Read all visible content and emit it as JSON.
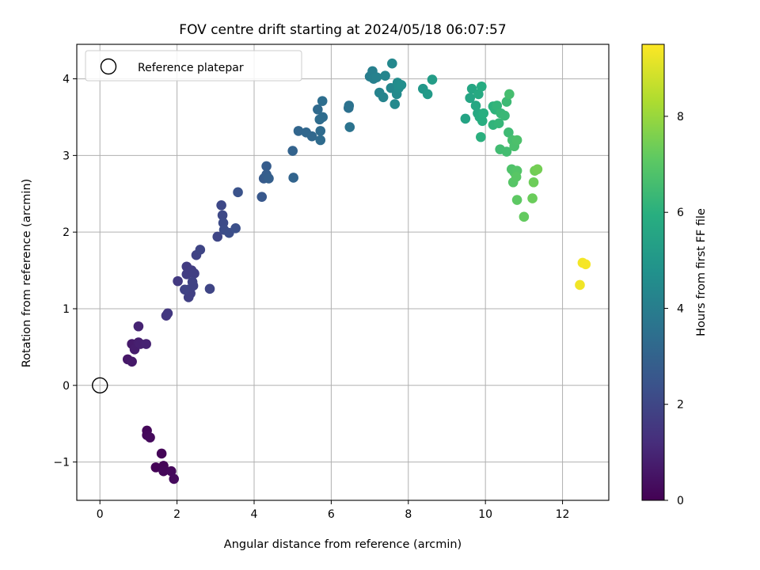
{
  "chart_data": {
    "type": "scatter",
    "title": "FOV centre drift starting at 2024/05/18 06:07:57",
    "xlabel": "Angular distance from reference (arcmin)",
    "ylabel": "Rotation from reference (arcmin)",
    "xlim": [
      -0.6,
      13.2
    ],
    "ylim": [
      -1.5,
      4.45
    ],
    "xticks": [
      0,
      2,
      4,
      6,
      8,
      10,
      12
    ],
    "yticks": [
      -1,
      0,
      1,
      2,
      3,
      4
    ],
    "xtick_labels": [
      "0",
      "2",
      "4",
      "6",
      "8",
      "10",
      "12"
    ],
    "ytick_labels": [
      "−1",
      "0",
      "1",
      "2",
      "3",
      "4"
    ],
    "grid": true,
    "legend": {
      "position": "upper-left",
      "entries": [
        "Reference platepar"
      ]
    },
    "reference_point": {
      "x": 0,
      "y": 0,
      "label": "Reference platepar"
    },
    "colorbar": {
      "label": "Hours from first FF file",
      "colormap": "viridis",
      "range": [
        0,
        9.5
      ],
      "ticks": [
        0,
        2,
        4,
        6,
        8
      ],
      "tick_labels": [
        "0",
        "2",
        "4",
        "6",
        "8"
      ]
    },
    "points": [
      {
        "x": 1.22,
        "y": -0.59,
        "t": 0.15
      },
      {
        "x": 1.22,
        "y": -0.65,
        "t": 0.2
      },
      {
        "x": 1.3,
        "y": -0.68,
        "t": 0.25
      },
      {
        "x": 1.6,
        "y": -0.89,
        "t": 0.1
      },
      {
        "x": 1.45,
        "y": -1.07,
        "t": 0.05
      },
      {
        "x": 1.65,
        "y": -1.05,
        "t": 0.1
      },
      {
        "x": 1.65,
        "y": -1.12,
        "t": 0.15
      },
      {
        "x": 1.85,
        "y": -1.12,
        "t": 0.2
      },
      {
        "x": 1.92,
        "y": -1.22,
        "t": 0.25
      },
      {
        "x": 0.72,
        "y": 0.34,
        "t": 0.6
      },
      {
        "x": 0.83,
        "y": 0.31,
        "t": 0.65
      },
      {
        "x": 0.83,
        "y": 0.54,
        "t": 0.7
      },
      {
        "x": 0.9,
        "y": 0.47,
        "t": 0.75
      },
      {
        "x": 1.0,
        "y": 0.56,
        "t": 0.8
      },
      {
        "x": 1.05,
        "y": 0.54,
        "t": 0.85
      },
      {
        "x": 1.2,
        "y": 0.54,
        "t": 0.9
      },
      {
        "x": 1.0,
        "y": 0.77,
        "t": 0.95
      },
      {
        "x": 1.72,
        "y": 0.91,
        "t": 1.5
      },
      {
        "x": 1.76,
        "y": 0.94,
        "t": 1.55
      },
      {
        "x": 2.02,
        "y": 1.36,
        "t": 1.6
      },
      {
        "x": 2.25,
        "y": 1.55,
        "t": 1.65
      },
      {
        "x": 2.25,
        "y": 1.45,
        "t": 1.7
      },
      {
        "x": 2.38,
        "y": 1.5,
        "t": 1.7
      },
      {
        "x": 2.45,
        "y": 1.46,
        "t": 1.75
      },
      {
        "x": 2.3,
        "y": 1.25,
        "t": 1.75
      },
      {
        "x": 2.35,
        "y": 1.2,
        "t": 1.8
      },
      {
        "x": 2.3,
        "y": 1.15,
        "t": 1.8
      },
      {
        "x": 2.42,
        "y": 1.3,
        "t": 1.85
      },
      {
        "x": 2.4,
        "y": 1.35,
        "t": 1.85
      },
      {
        "x": 2.2,
        "y": 1.25,
        "t": 1.9
      },
      {
        "x": 2.5,
        "y": 1.7,
        "t": 1.9
      },
      {
        "x": 2.6,
        "y": 1.77,
        "t": 1.95
      },
      {
        "x": 2.85,
        "y": 1.26,
        "t": 1.95
      },
      {
        "x": 3.05,
        "y": 1.94,
        "t": 2.0
      },
      {
        "x": 3.15,
        "y": 2.35,
        "t": 2.05
      },
      {
        "x": 3.18,
        "y": 2.22,
        "t": 2.1
      },
      {
        "x": 3.2,
        "y": 2.12,
        "t": 2.15
      },
      {
        "x": 3.22,
        "y": 2.03,
        "t": 2.2
      },
      {
        "x": 3.35,
        "y": 1.99,
        "t": 2.25
      },
      {
        "x": 3.52,
        "y": 2.05,
        "t": 2.3
      },
      {
        "x": 3.58,
        "y": 2.52,
        "t": 2.4
      },
      {
        "x": 4.2,
        "y": 2.46,
        "t": 2.6
      },
      {
        "x": 4.25,
        "y": 2.7,
        "t": 2.7
      },
      {
        "x": 4.32,
        "y": 2.86,
        "t": 2.75
      },
      {
        "x": 4.32,
        "y": 2.75,
        "t": 2.8
      },
      {
        "x": 4.38,
        "y": 2.7,
        "t": 2.85
      },
      {
        "x": 5.0,
        "y": 3.06,
        "t": 3.0
      },
      {
        "x": 5.02,
        "y": 2.71,
        "t": 3.05
      },
      {
        "x": 5.15,
        "y": 3.32,
        "t": 3.1
      },
      {
        "x": 5.35,
        "y": 3.3,
        "t": 3.15
      },
      {
        "x": 5.5,
        "y": 3.25,
        "t": 3.2
      },
      {
        "x": 5.65,
        "y": 3.6,
        "t": 3.25
      },
      {
        "x": 5.72,
        "y": 3.2,
        "t": 3.3
      },
      {
        "x": 5.72,
        "y": 3.32,
        "t": 3.3
      },
      {
        "x": 5.7,
        "y": 3.47,
        "t": 3.35
      },
      {
        "x": 5.78,
        "y": 3.5,
        "t": 3.35
      },
      {
        "x": 5.77,
        "y": 3.71,
        "t": 3.4
      },
      {
        "x": 6.45,
        "y": 3.62,
        "t": 3.5
      },
      {
        "x": 6.46,
        "y": 3.65,
        "t": 3.55
      },
      {
        "x": 6.48,
        "y": 3.37,
        "t": 3.6
      },
      {
        "x": 7.0,
        "y": 4.03,
        "t": 4.0
      },
      {
        "x": 7.07,
        "y": 4.1,
        "t": 4.05
      },
      {
        "x": 7.1,
        "y": 4.0,
        "t": 4.1
      },
      {
        "x": 7.18,
        "y": 4.02,
        "t": 4.15
      },
      {
        "x": 7.25,
        "y": 3.82,
        "t": 4.2
      },
      {
        "x": 7.35,
        "y": 3.76,
        "t": 4.25
      },
      {
        "x": 7.4,
        "y": 4.04,
        "t": 4.3
      },
      {
        "x": 7.55,
        "y": 3.88,
        "t": 4.35
      },
      {
        "x": 7.58,
        "y": 4.2,
        "t": 4.4
      },
      {
        "x": 7.65,
        "y": 3.67,
        "t": 4.45
      },
      {
        "x": 7.7,
        "y": 3.8,
        "t": 4.5
      },
      {
        "x": 7.72,
        "y": 3.95,
        "t": 4.55
      },
      {
        "x": 7.75,
        "y": 3.88,
        "t": 4.6
      },
      {
        "x": 7.82,
        "y": 3.92,
        "t": 4.65
      },
      {
        "x": 8.38,
        "y": 3.87,
        "t": 5.0
      },
      {
        "x": 8.5,
        "y": 3.8,
        "t": 5.1
      },
      {
        "x": 8.62,
        "y": 3.99,
        "t": 5.2
      },
      {
        "x": 9.48,
        "y": 3.48,
        "t": 5.5
      },
      {
        "x": 9.6,
        "y": 3.75,
        "t": 5.55
      },
      {
        "x": 9.65,
        "y": 3.87,
        "t": 5.6
      },
      {
        "x": 9.75,
        "y": 3.65,
        "t": 5.65
      },
      {
        "x": 9.8,
        "y": 3.55,
        "t": 5.7
      },
      {
        "x": 9.82,
        "y": 3.8,
        "t": 5.75
      },
      {
        "x": 9.85,
        "y": 3.5,
        "t": 5.8
      },
      {
        "x": 9.9,
        "y": 3.9,
        "t": 5.85
      },
      {
        "x": 9.92,
        "y": 3.45,
        "t": 5.9
      },
      {
        "x": 9.95,
        "y": 3.55,
        "t": 5.95
      },
      {
        "x": 9.88,
        "y": 3.24,
        "t": 6.0
      },
      {
        "x": 10.2,
        "y": 3.64,
        "t": 6.05
      },
      {
        "x": 10.25,
        "y": 3.6,
        "t": 6.1
      },
      {
        "x": 10.2,
        "y": 3.4,
        "t": 6.15
      },
      {
        "x": 10.3,
        "y": 3.65,
        "t": 6.2
      },
      {
        "x": 10.35,
        "y": 3.42,
        "t": 6.25
      },
      {
        "x": 10.4,
        "y": 3.55,
        "t": 6.3
      },
      {
        "x": 10.5,
        "y": 3.52,
        "t": 6.35
      },
      {
        "x": 10.55,
        "y": 3.7,
        "t": 6.4
      },
      {
        "x": 10.6,
        "y": 3.3,
        "t": 6.45
      },
      {
        "x": 10.38,
        "y": 3.08,
        "t": 6.5
      },
      {
        "x": 10.55,
        "y": 3.05,
        "t": 6.55
      },
      {
        "x": 10.62,
        "y": 3.8,
        "t": 6.6
      },
      {
        "x": 10.7,
        "y": 3.2,
        "t": 6.65
      },
      {
        "x": 10.75,
        "y": 3.12,
        "t": 6.7
      },
      {
        "x": 10.82,
        "y": 3.2,
        "t": 6.75
      },
      {
        "x": 10.68,
        "y": 2.82,
        "t": 6.8
      },
      {
        "x": 10.75,
        "y": 2.78,
        "t": 6.85
      },
      {
        "x": 10.82,
        "y": 2.8,
        "t": 6.9
      },
      {
        "x": 10.72,
        "y": 2.65,
        "t": 6.95
      },
      {
        "x": 10.8,
        "y": 2.72,
        "t": 7.0
      },
      {
        "x": 10.82,
        "y": 2.42,
        "t": 7.1
      },
      {
        "x": 11.0,
        "y": 2.2,
        "t": 7.2
      },
      {
        "x": 11.22,
        "y": 2.44,
        "t": 7.3
      },
      {
        "x": 11.25,
        "y": 2.65,
        "t": 7.35
      },
      {
        "x": 11.28,
        "y": 2.8,
        "t": 7.4
      },
      {
        "x": 11.35,
        "y": 2.82,
        "t": 7.45
      },
      {
        "x": 12.45,
        "y": 1.31,
        "t": 9.3
      },
      {
        "x": 12.52,
        "y": 1.6,
        "t": 9.35
      },
      {
        "x": 12.6,
        "y": 1.58,
        "t": 9.4
      }
    ]
  }
}
